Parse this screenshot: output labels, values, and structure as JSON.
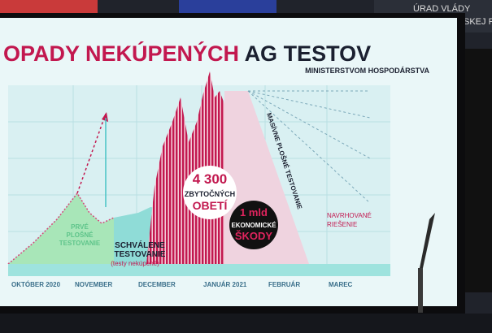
{
  "background": {
    "sign_line_1": "ÚRAD VLÁDY",
    "sign_line_2": "SKEJ RE"
  },
  "slide": {
    "title_red": "OPADY NEKÚPENÝCH",
    "title_dark": "AG TESTOV",
    "source": "MINISTERSTVOM HOSPODÁRSTVA",
    "months": [
      "OKTÓBER 2020",
      "NOVEMBER",
      "DECEMBER",
      "JANUÁR 2021",
      "FEBRUÁR",
      "MAREC"
    ],
    "deaths": {
      "number": "4 300",
      "line_1": "ZBYTOČNÝCH",
      "line_2": "OBETÍ"
    },
    "damage": {
      "number": "1 mld",
      "line_1": "EKONOMICKÉ",
      "line_2": "ŠKODY"
    },
    "first_testing": [
      "PRVÉ",
      "PLOŠNÉ",
      "TESTOVANIE"
    ],
    "approved": {
      "line_1": "SCHVÁLENE",
      "line_2": "TESTOVANIE",
      "line_3": "(testy nekúpené)"
    },
    "mass_testing": "MASÍVNE PLOŠNÉ TESTOVANIE",
    "proposed": {
      "line_1": "NAVRHOVANÉ",
      "line_2": "RIEŠENIE"
    }
  }
}
